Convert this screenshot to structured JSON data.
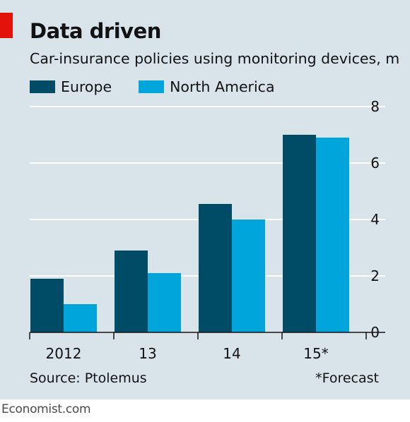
{
  "colors": {
    "background": "#d8e4ea",
    "accent": "#e3120b",
    "europe": "#004b66",
    "north_america": "#00a5dc"
  },
  "chart_data": {
    "type": "bar",
    "title": "Data driven",
    "subtitle": "Car-insurance policies using monitoring devices, m",
    "categories": [
      "2012",
      "13",
      "14",
      "15*"
    ],
    "series": [
      {
        "name": "Europe",
        "values": [
          1.9,
          2.9,
          4.55,
          7.0
        ]
      },
      {
        "name": "North America",
        "values": [
          1.0,
          2.1,
          4.0,
          6.9
        ]
      }
    ],
    "ylim": [
      0,
      8
    ],
    "yticks": [
      "0",
      "2",
      "4",
      "6",
      "8"
    ],
    "y_axis_side": "right",
    "grid": true,
    "legend_placement": "top-left",
    "source": "Source: Ptolemus",
    "note": "*Forecast"
  },
  "branding": "Economist.com"
}
